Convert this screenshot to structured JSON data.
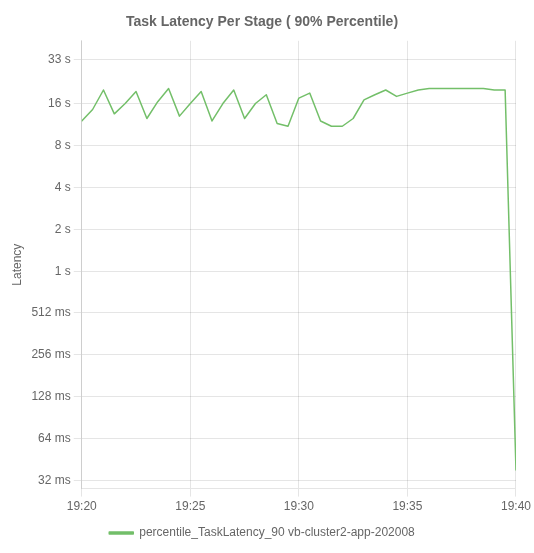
{
  "chart_data": {
    "type": "line",
    "title": "Task Latency Per Stage ( 90% Percentile)",
    "ylabel": "Latency",
    "x": [
      0,
      0.5,
      1.0,
      1.5,
      2.0,
      2.5,
      3.0,
      3.5,
      4.0,
      4.5,
      5.0,
      5.5,
      6.0,
      6.5,
      7.0,
      7.5,
      8.0,
      8.5,
      9.0,
      9.5,
      10.0,
      10.5,
      11.0,
      11.5,
      12.0,
      12.5,
      13.0,
      13.5,
      14.0,
      14.5,
      15.0,
      15.5,
      16.0,
      16.5,
      17.0,
      17.5,
      18.0,
      18.5,
      19.0,
      19.4,
      19.5,
      20.0
    ],
    "series": [
      {
        "name": "percentile_TaskLatency_90 vb-cluster2-app-202008",
        "color": "#73bf69",
        "values": [
          12.0,
          14.5,
          20.0,
          13.5,
          16.0,
          19.5,
          12.5,
          16.5,
          20.5,
          13.0,
          16.0,
          19.5,
          12.0,
          16.0,
          20.0,
          12.5,
          16.0,
          18.5,
          11.5,
          11.0,
          17.5,
          19.0,
          12.0,
          11.0,
          11.0,
          12.5,
          17.0,
          18.5,
          20.0,
          18.0,
          19.0,
          20.0,
          20.5,
          20.5,
          20.5,
          20.5,
          20.5,
          20.5,
          20.0,
          20.0,
          20.0,
          0.038
        ]
      }
    ],
    "xlim": [
      0,
      20
    ],
    "xticks": [
      {
        "value": 0,
        "label": "19:20"
      },
      {
        "value": 5,
        "label": "19:25"
      },
      {
        "value": 10,
        "label": "19:30"
      },
      {
        "value": 15,
        "label": "19:35"
      },
      {
        "value": 20,
        "label": "19:40"
      }
    ],
    "ylim": [
      0.028,
      45.0
    ],
    "yticks": [
      {
        "value": 0.032,
        "label": "32 ms"
      },
      {
        "value": 0.064,
        "label": "64 ms"
      },
      {
        "value": 0.128,
        "label": "128 ms"
      },
      {
        "value": 0.256,
        "label": "256 ms"
      },
      {
        "value": 0.512,
        "label": "512 ms"
      },
      {
        "value": 1.0,
        "label": "1 s"
      },
      {
        "value": 2.0,
        "label": "2 s"
      },
      {
        "value": 4.0,
        "label": "4 s"
      },
      {
        "value": 8.0,
        "label": "8 s"
      },
      {
        "value": 16.0,
        "label": "16 s"
      },
      {
        "value": 33.0,
        "label": "33 s"
      }
    ],
    "log": "y",
    "grid": true,
    "legend": "bottom"
  }
}
